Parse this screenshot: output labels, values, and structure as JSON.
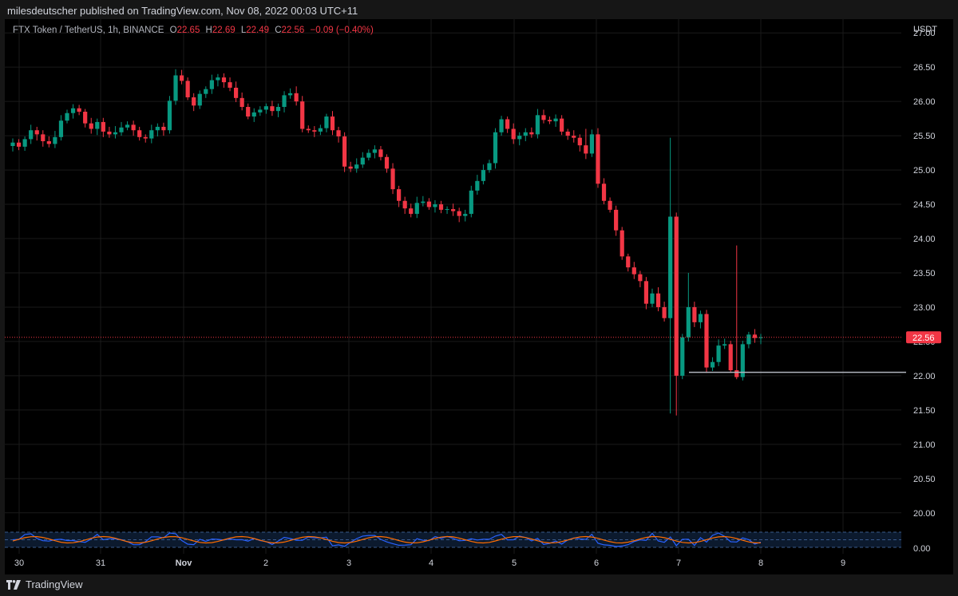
{
  "header": {
    "published": "milesdeutscher published on TradingView.com, Nov 08, 2022 00:03 UTC+11"
  },
  "legend": {
    "symbol": "FTX Token / TetherUS, 1h, BINANCE",
    "o_label": "O",
    "o": "22.65",
    "h_label": "H",
    "h": "22.69",
    "l_label": "L",
    "l": "22.49",
    "c_label": "C",
    "c": "22.56",
    "change": "−0.09 (−0.40%)"
  },
  "price_axis": {
    "currency": "USDT",
    "ticks": [
      "27.00",
      "26.50",
      "26.00",
      "25.50",
      "25.00",
      "24.50",
      "24.00",
      "23.50",
      "23.00",
      "22.50",
      "22.00",
      "21.50",
      "21.00",
      "20.50",
      "20.00"
    ],
    "last_price": "22.56",
    "oscillator_tick": "0.00"
  },
  "time_axis": {
    "ticks": [
      "30",
      "31",
      "Nov",
      "2",
      "3",
      "4",
      "5",
      "6",
      "7",
      "8",
      "9"
    ]
  },
  "footer": {
    "brand": "TradingView"
  },
  "colors": {
    "up": "#089981",
    "down": "#f23645",
    "background": "#000000",
    "grid": "#1a1a1a",
    "line": "#b2b5be"
  },
  "chart_data": {
    "type": "candlestick",
    "title": "FTX Token / TetherUS, 1h, BINANCE",
    "xlabel": "",
    "ylabel": "USDT",
    "ylim": [
      19.8,
      27.2
    ],
    "horizontal_line": 22.05,
    "last_price": 22.56,
    "days": [
      "30",
      "31",
      "Nov",
      "2",
      "3",
      "4",
      "5",
      "6",
      "7",
      "8",
      "9"
    ],
    "closes": [
      25.4,
      25.34,
      25.45,
      25.58,
      25.52,
      25.42,
      25.38,
      25.48,
      25.72,
      25.83,
      25.9,
      25.85,
      25.68,
      25.6,
      25.7,
      25.56,
      25.52,
      25.55,
      25.62,
      25.66,
      25.58,
      25.48,
      25.46,
      25.58,
      25.63,
      25.58,
      26.01,
      26.38,
      26.3,
      26.06,
      25.94,
      26.11,
      26.18,
      26.31,
      26.35,
      26.28,
      26.2,
      26.05,
      25.92,
      25.78,
      25.84,
      25.88,
      25.93,
      25.86,
      25.92,
      26.09,
      26.12,
      26.0,
      25.6,
      25.58,
      25.56,
      25.61,
      25.78,
      25.58,
      25.49,
      25.05,
      25.02,
      25.08,
      25.18,
      25.25,
      25.3,
      25.19,
      25.02,
      24.72,
      24.55,
      24.44,
      24.36,
      24.52,
      24.54,
      24.46,
      24.5,
      24.42,
      24.43,
      24.4,
      24.33,
      24.36,
      24.7,
      24.84,
      25.0,
      25.1,
      25.55,
      25.74,
      25.6,
      25.45,
      25.5,
      25.55,
      25.52,
      25.8,
      25.73,
      25.71,
      25.75,
      25.56,
      25.5,
      25.47,
      25.36,
      25.24,
      25.52,
      24.8,
      24.55,
      24.42,
      24.12,
      23.74,
      23.58,
      23.48,
      23.38,
      23.05,
      23.2,
      23.0,
      22.84,
      24.32,
      22.0,
      22.56,
      23.0,
      22.78,
      22.9,
      22.12,
      22.2,
      22.44,
      22.46,
      22.08,
      21.98,
      22.46,
      22.6,
      22.55,
      22.56
    ]
  }
}
